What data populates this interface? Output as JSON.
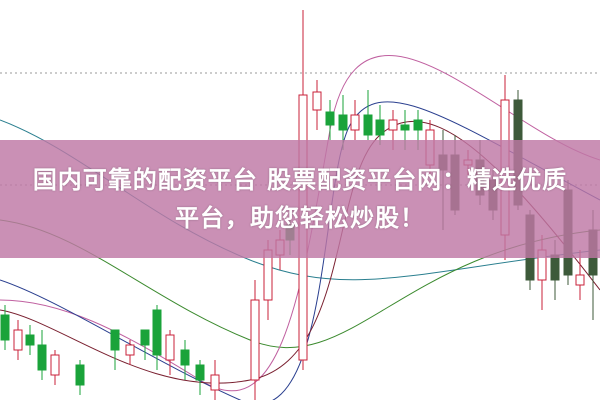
{
  "headline": {
    "line1": "国内可靠的配资平台 股票配资平台网：精选优质",
    "line2": "平台，助您轻松炒股！"
  },
  "colors": {
    "banner": "#be78a5",
    "up_candle": "#c8203a",
    "down_candle": "#1aa33a",
    "gridline": "#999999"
  },
  "icons": []
}
